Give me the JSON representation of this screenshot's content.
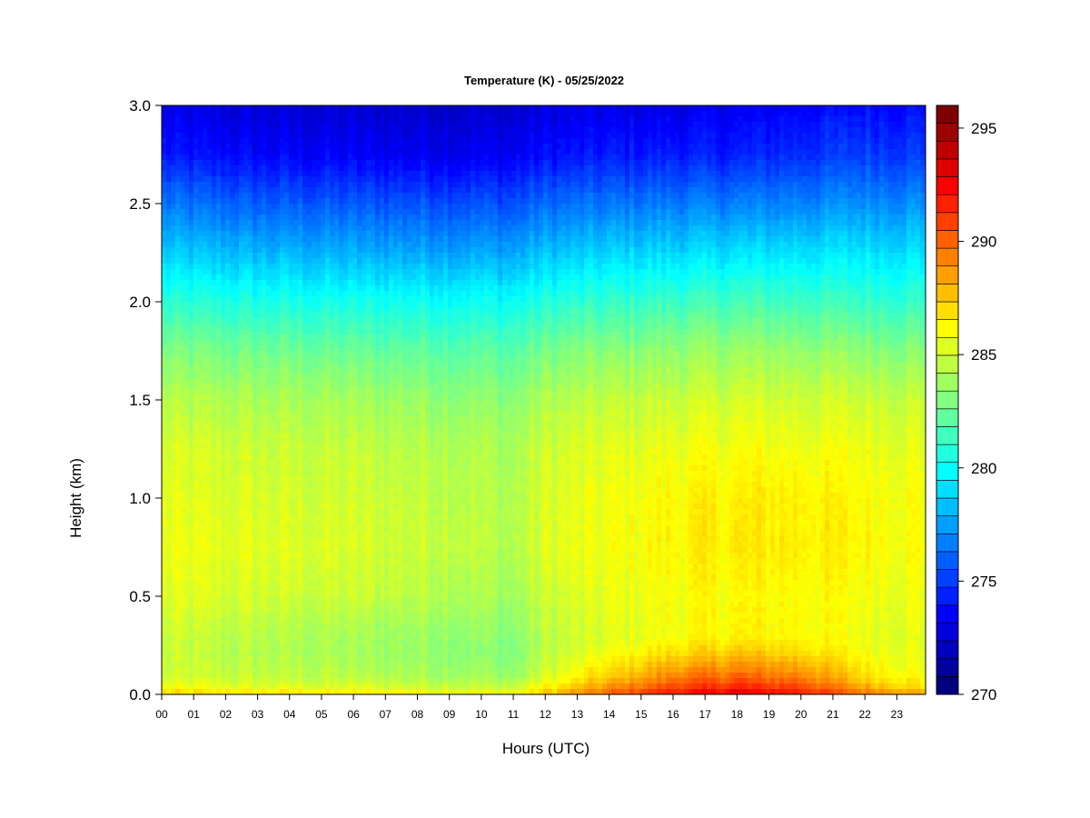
{
  "chart_data": {
    "type": "heatmap",
    "title": "Temperature (K) - 05/25/2022",
    "xlabel": "Hours (UTC)",
    "ylabel": "Height (km)",
    "x_ticks": [
      "00",
      "01",
      "02",
      "03",
      "04",
      "05",
      "06",
      "07",
      "08",
      "09",
      "10",
      "11",
      "12",
      "13",
      "14",
      "15",
      "16",
      "17",
      "18",
      "19",
      "20",
      "21",
      "22",
      "23"
    ],
    "xlim": [
      0,
      23.9
    ],
    "ylim": [
      0.0,
      3.0
    ],
    "y_ticks": [
      "0.0",
      "0.5",
      "1.0",
      "1.5",
      "2.0",
      "2.5",
      "3.0"
    ],
    "y_tick_values": [
      0.0,
      0.5,
      1.0,
      1.5,
      2.0,
      2.5,
      3.0
    ],
    "colorbar": {
      "range": [
        270,
        296
      ],
      "ticks": [
        "270",
        "275",
        "280",
        "285",
        "290",
        "295"
      ],
      "tick_values": [
        270,
        275,
        280,
        285,
        290,
        295
      ],
      "colors": [
        "#00007F",
        "#00009F",
        "#0000BF",
        "#0000DF",
        "#0000FF",
        "#0020FF",
        "#0040FF",
        "#0060FF",
        "#0080FF",
        "#009FFF",
        "#00BFFF",
        "#00DFFF",
        "#00FFFF",
        "#20FFDF",
        "#40FFBF",
        "#60FF9F",
        "#80FF80",
        "#9FFF60",
        "#BFFF40",
        "#DFFF20",
        "#FFFF00",
        "#FFDF00",
        "#FFBF00",
        "#FF9F00",
        "#FF8000",
        "#FF6000",
        "#FF4000",
        "#FF2000",
        "#FF0000",
        "#DF0000",
        "#BF0000",
        "#9F0000",
        "#7F0000"
      ]
    },
    "profile": {
      "heights_km": [
        0.0,
        0.02,
        0.05,
        0.1,
        0.2,
        0.3,
        0.5,
        0.75,
        1.0,
        1.25,
        1.5,
        1.75,
        2.0,
        2.25,
        2.5,
        2.75,
        3.0
      ],
      "temps_K": {
        "00": [
          287.5,
          286.6,
          285.5,
          285.0,
          284.8,
          284.9,
          285.4,
          285.7,
          285.5,
          285.2,
          284.3,
          282.9,
          280.8,
          278.4,
          276.2,
          273.8,
          272.6
        ],
        "03": [
          287.0,
          286.2,
          285.2,
          284.7,
          284.3,
          284.4,
          285.1,
          285.5,
          285.2,
          284.9,
          284.1,
          282.6,
          280.4,
          277.9,
          275.6,
          273.2,
          272.2
        ],
        "06": [
          286.6,
          285.9,
          285.0,
          284.4,
          283.9,
          284.0,
          284.8,
          285.2,
          285.0,
          284.7,
          283.9,
          282.4,
          280.2,
          277.7,
          275.4,
          273.0,
          272.1
        ],
        "09": [
          286.2,
          285.5,
          284.7,
          284.0,
          283.6,
          283.7,
          284.4,
          284.9,
          284.7,
          284.4,
          283.6,
          282.2,
          280.1,
          277.6,
          275.3,
          272.9,
          272.0
        ],
        "11": [
          286.0,
          285.3,
          284.4,
          283.6,
          283.0,
          283.2,
          283.8,
          284.2,
          284.2,
          284.0,
          283.3,
          282.0,
          279.9,
          277.5,
          275.2,
          272.9,
          272.0
        ],
        "12": [
          287.5,
          286.9,
          286.0,
          285.1,
          284.6,
          284.5,
          284.9,
          285.4,
          285.3,
          285.0,
          284.2,
          282.8,
          280.6,
          278.2,
          275.9,
          273.5,
          272.4
        ],
        "14": [
          290.5,
          289.6,
          288.5,
          287.3,
          286.0,
          285.4,
          285.6,
          285.9,
          285.8,
          285.4,
          284.6,
          283.2,
          281.0,
          278.6,
          276.2,
          273.8,
          272.6
        ],
        "16": [
          292.5,
          291.6,
          290.6,
          289.2,
          287.2,
          286.0,
          286.1,
          286.4,
          286.3,
          285.8,
          284.9,
          283.5,
          281.3,
          278.8,
          276.4,
          273.9,
          272.6
        ],
        "18": [
          293.4,
          292.6,
          291.4,
          290.0,
          287.9,
          286.4,
          286.3,
          286.7,
          286.6,
          286.0,
          285.1,
          283.7,
          281.5,
          279.0,
          276.5,
          274.0,
          272.8
        ],
        "20": [
          292.2,
          291.6,
          290.5,
          289.3,
          287.4,
          286.3,
          286.3,
          286.7,
          286.6,
          286.0,
          285.1,
          283.6,
          281.4,
          279.1,
          276.7,
          274.4,
          273.2
        ],
        "22": [
          290.0,
          289.2,
          288.0,
          287.0,
          286.2,
          285.8,
          286.0,
          286.4,
          286.3,
          285.9,
          285.0,
          283.4,
          281.2,
          279.2,
          277.0,
          274.8,
          273.6
        ],
        "23.9": [
          288.6,
          287.6,
          286.5,
          285.9,
          285.6,
          285.5,
          285.8,
          286.1,
          286.0,
          285.6,
          284.8,
          283.2,
          281.1,
          279.0,
          276.9,
          274.7,
          273.5
        ]
      }
    }
  }
}
